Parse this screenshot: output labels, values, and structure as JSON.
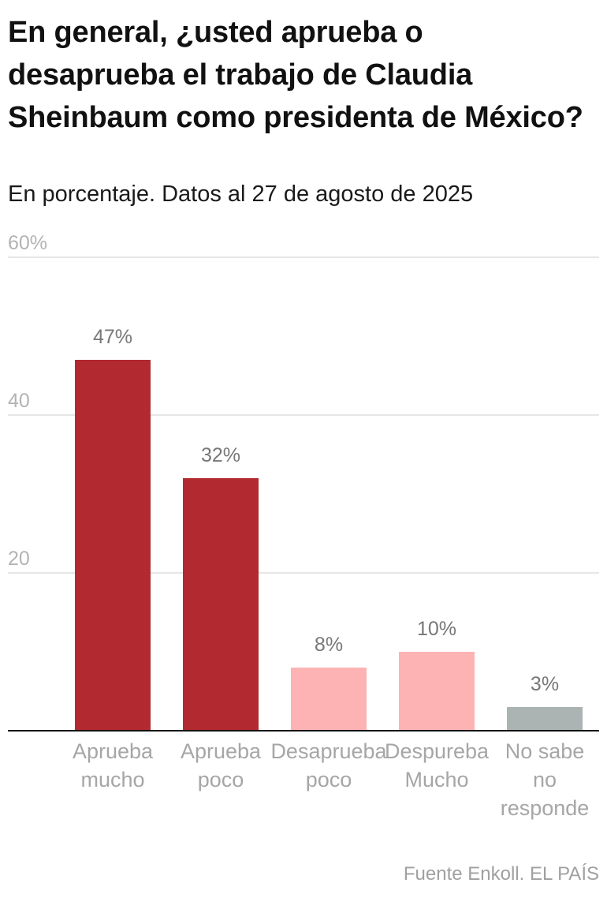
{
  "chart_data": {
    "type": "bar",
    "title": "En general, ¿usted aprueba o desaprueba el trabajo de Claudia Sheinbaum como presidenta de México?",
    "subtitle": "En porcentaje. Datos al 27 de agosto de 2025",
    "categories": [
      [
        "Aprueba",
        "mucho"
      ],
      [
        "Aprueba",
        "poco"
      ],
      [
        "Desaprueba",
        "poco"
      ],
      [
        "Despureba",
        "Mucho"
      ],
      [
        "No sabe",
        "no",
        "responde"
      ]
    ],
    "values": [
      47,
      32,
      8,
      10,
      3
    ],
    "value_labels": [
      "47%",
      "32%",
      "8%",
      "10%",
      "3%"
    ],
    "colors": [
      "#b22a2f",
      "#b22a2f",
      "#fdb3b4",
      "#fdb3b4",
      "#abb3b3"
    ],
    "ylim": [
      0,
      60
    ],
    "yticks": [
      {
        "value": 20,
        "label": "20"
      },
      {
        "value": 40,
        "label": "40"
      },
      {
        "value": 60,
        "label": "60%"
      }
    ],
    "xlabel": "",
    "ylabel": "",
    "grid": true,
    "source": "Fuente Enkoll. EL PAÍS"
  }
}
